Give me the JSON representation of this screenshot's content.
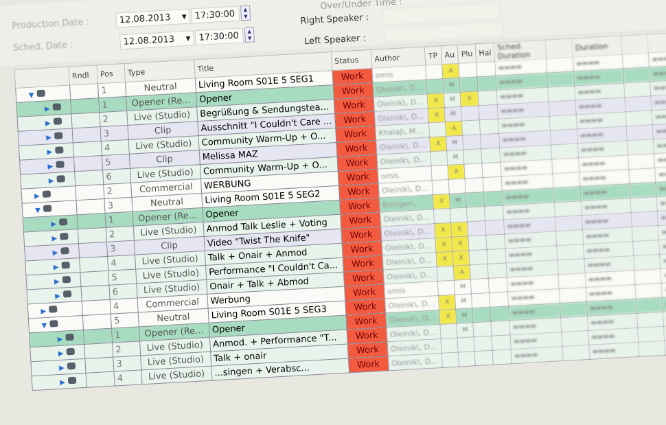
{
  "form": {
    "over_under_label": "Over/Under Time :",
    "production_date_label": "Production Date :",
    "production_date": "12.08.2013",
    "production_time": "17:30:00",
    "sched_date_label": "Sched. Date :",
    "sched_date": "12.08.2013",
    "sched_time": "17:30:00",
    "right_speaker_label": "Right Speaker :",
    "left_speaker_label": "Left Speaker :"
  },
  "columns": [
    "",
    "Rndl",
    "Pos",
    "Type",
    "Title",
    "Status",
    "Author",
    "TP",
    "Au",
    "Plu",
    "Hal",
    "Sched. Duration",
    "",
    "Duration",
    "",
    ""
  ],
  "rows": [
    {
      "lvl": 0,
      "exp": true,
      "pos": "1",
      "type": "Neutral",
      "title": "Living Room S01E 5 SEG1",
      "status": "Work",
      "author": "omis",
      "tp": "",
      "au": "A",
      "plu": "",
      "c": "w"
    },
    {
      "lvl": 1,
      "pos": "1",
      "type": "Opener (Re...",
      "title": "Opener",
      "status": "Work",
      "author": "Oleinik\\, D...",
      "tp": "",
      "au": "M",
      "plu": "",
      "c": "g"
    },
    {
      "lvl": 1,
      "pos": "2",
      "type": "Live (Studio)",
      "title": "Begrüßung & Sendungstea...",
      "status": "Work",
      "author": "Oleinik\\, D...",
      "tp": "X",
      "au": "M",
      "plu": "X",
      "c": "l"
    },
    {
      "lvl": 1,
      "pos": "3",
      "type": "Clip",
      "title": "Ausschnitt \"I Couldn't Care ...",
      "status": "Work",
      "author": "Oleinik\\, D...",
      "tp": "X",
      "au": "M",
      "plu": "",
      "c": "p"
    },
    {
      "lvl": 1,
      "pos": "4",
      "type": "Live (Studio)",
      "title": "Community Warm-Up + O...",
      "status": "Work",
      "author": "Khalaj\\, M...",
      "tp": "",
      "au": "A",
      "plu": "",
      "c": "l"
    },
    {
      "lvl": 1,
      "pos": "5",
      "type": "Clip",
      "title": "Melissa MAZ",
      "status": "Work",
      "author": "Oleinik\\, D...",
      "tp": "X",
      "au": "M",
      "plu": "",
      "c": "p"
    },
    {
      "lvl": 1,
      "pos": "6",
      "type": "Live (Studio)",
      "title": "Community Warm-Up + O...",
      "status": "Work",
      "author": "Oleinik\\, D...",
      "tp": "",
      "au": "M",
      "plu": "",
      "c": "l"
    },
    {
      "lvl": 0,
      "pos": "2",
      "type": "Commercial",
      "title": "WERBUNG",
      "status": "Work",
      "author": "omis",
      "tp": "",
      "au": "A",
      "plu": "",
      "c": "w"
    },
    {
      "lvl": 0,
      "exp": true,
      "pos": "3",
      "type": "Neutral",
      "title": "Living Room S01E 5 SEG2",
      "status": "Work",
      "author": "Oleinik\\, D...",
      "tp": "",
      "au": "",
      "plu": "",
      "c": "w"
    },
    {
      "lvl": 1,
      "pos": "1",
      "type": "Opener (Re...",
      "title": "Opener",
      "status": "Work",
      "author": "Bolliger\\, ...",
      "tp": "X",
      "au": "M",
      "plu": "",
      "c": "g"
    },
    {
      "lvl": 1,
      "pos": "2",
      "type": "Live (Studio)",
      "title": "Anmod Talk Leslie + Voting",
      "status": "Work",
      "author": "Oleinik\\, D...",
      "tp": "",
      "au": "",
      "plu": "",
      "c": "l"
    },
    {
      "lvl": 1,
      "pos": "3",
      "type": "Clip",
      "title": "Video \"Twist The Knife\"",
      "status": "Work",
      "author": "Oleinik\\, D...",
      "tp": "X",
      "au": "X",
      "plu": "",
      "c": "p"
    },
    {
      "lvl": 1,
      "pos": "4",
      "type": "Live (Studio)",
      "title": "Talk + Onair + Anmod",
      "status": "Work",
      "author": "Oleinik\\, D...",
      "tp": "X",
      "au": "X",
      "plu": "",
      "c": "l"
    },
    {
      "lvl": 1,
      "pos": "5",
      "type": "Live (Studio)",
      "title": "Performance \"I Couldn't Ca...",
      "status": "Work",
      "author": "Oleinik\\, D...",
      "tp": "X",
      "au": "X",
      "plu": "",
      "c": "l"
    },
    {
      "lvl": 1,
      "pos": "6",
      "type": "Live (Studio)",
      "title": "Onair + Talk + Abmod",
      "status": "Work",
      "author": "Oleinik\\, D...",
      "tp": "",
      "au": "A",
      "plu": "",
      "c": "l"
    },
    {
      "lvl": 0,
      "pos": "4",
      "type": "Commercial",
      "title": "Werbung",
      "status": "Work",
      "author": "omis",
      "tp": "",
      "au": "M",
      "plu": "",
      "c": "w"
    },
    {
      "lvl": 0,
      "exp": true,
      "pos": "5",
      "type": "Neutral",
      "title": "Living Room S01E 5 SEG3",
      "status": "Work",
      "author": "Oleinik\\, D...",
      "tp": "X",
      "au": "M",
      "plu": "",
      "c": "w"
    },
    {
      "lvl": 1,
      "pos": "1",
      "type": "Opener (Re...",
      "title": "Opener",
      "status": "Work",
      "author": "Oleinik\\, D...",
      "tp": "X",
      "au": "M",
      "plu": "",
      "c": "g"
    },
    {
      "lvl": 1,
      "pos": "2",
      "type": "Live (Studio)",
      "title": "Anmod. + Performance \"T...",
      "status": "Work",
      "author": "Oleinik\\, D...",
      "tp": "",
      "au": "M",
      "plu": "",
      "c": "l"
    },
    {
      "lvl": 1,
      "pos": "3",
      "type": "Live (Studio)",
      "title": "Talk + onair",
      "status": "Work",
      "author": "Oleinik\\, D...",
      "tp": "",
      "au": "",
      "plu": "",
      "c": "l"
    },
    {
      "lvl": 1,
      "pos": "4",
      "type": "Live (Studio)",
      "title": "...singen + Verabsc...",
      "status": "Work",
      "author": "Oleinik\\, D...",
      "tp": "",
      "au": "",
      "plu": "",
      "c": "l"
    }
  ],
  "colors": {
    "status_work": "#f25b40",
    "opener_row": "#a8dcc0",
    "flag": "#f2e84a"
  }
}
